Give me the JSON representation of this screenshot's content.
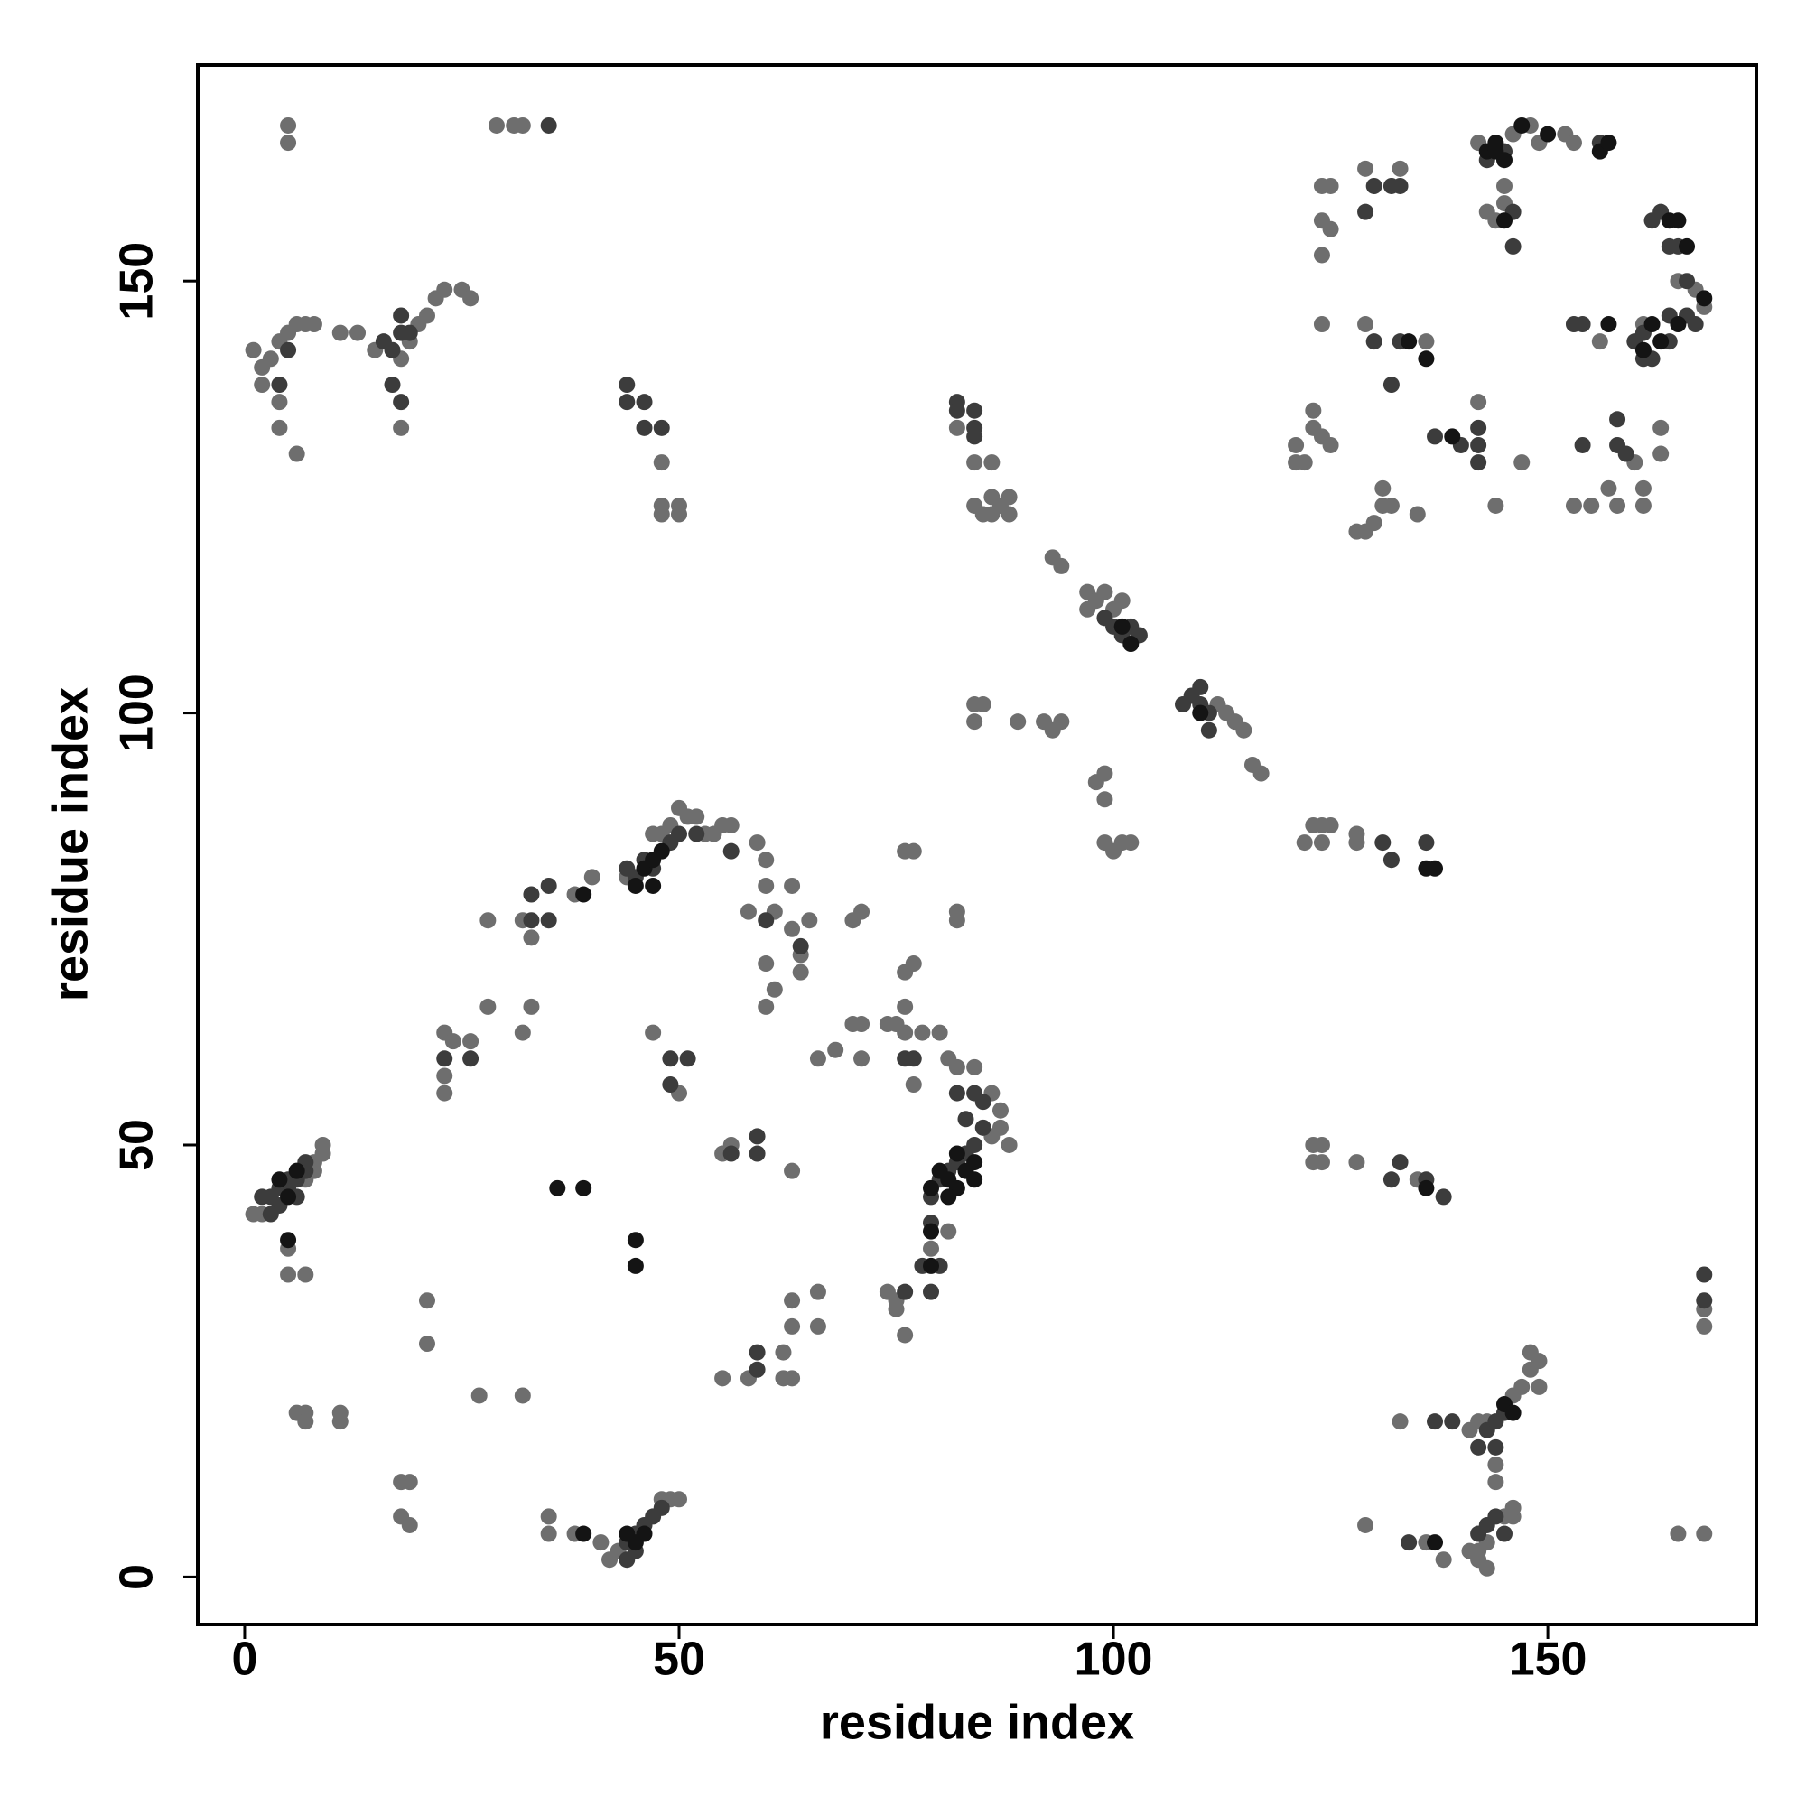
{
  "chart_data": {
    "type": "scatter",
    "x_label": "residue index",
    "y_label": "residue index",
    "xlim": [
      -5.4,
      174
    ],
    "ylim": [
      -5.5,
      175
    ],
    "xticks": [
      0,
      50,
      100,
      150
    ],
    "yticks": [
      0,
      50,
      100,
      150
    ],
    "grid": false,
    "series": [
      {
        "color": "#6e6e6e",
        "x": [
          5,
          5,
          29,
          31,
          32,
          1,
          2,
          3,
          4,
          5,
          6,
          7,
          8,
          2,
          4,
          6,
          4,
          11,
          13,
          15,
          18,
          19,
          20,
          21,
          22,
          23,
          25,
          26,
          18,
          48,
          48,
          48,
          50,
          50,
          82,
          84,
          86,
          84,
          85,
          86,
          87,
          86,
          88,
          88,
          93,
          94,
          97,
          98,
          99,
          100,
          101,
          97,
          112,
          113,
          114,
          115,
          116,
          117,
          84,
          84,
          85,
          89,
          92,
          93,
          94,
          98,
          99,
          99,
          99,
          100,
          101,
          102,
          123,
          124,
          125,
          122,
          124,
          128,
          128,
          124,
          125,
          124,
          125,
          124,
          124,
          129,
          133,
          129,
          136,
          121,
          122,
          121,
          123,
          124,
          123,
          125,
          128,
          129,
          130,
          131,
          132,
          131,
          135,
          142,
          145,
          145,
          144,
          143,
          146,
          148,
          149,
          152,
          153,
          153,
          155,
          157,
          158,
          161,
          161,
          160,
          163,
          163,
          165,
          167,
          168,
          144,
          147,
          156,
          161,
          142,
          1,
          2,
          7,
          8,
          9,
          9,
          8,
          5,
          5,
          7,
          6,
          7,
          7,
          11,
          11,
          18,
          19,
          18,
          19,
          21,
          21,
          27,
          32,
          35,
          35,
          38,
          41,
          42,
          43,
          48,
          49,
          50,
          23,
          24,
          23,
          23,
          26,
          28,
          32,
          33,
          32,
          28,
          33,
          38,
          40,
          44,
          47,
          48,
          49,
          50,
          51,
          52,
          53,
          54,
          55,
          56,
          59,
          60,
          60,
          61,
          63,
          63,
          65,
          58,
          60,
          61,
          60,
          64,
          64,
          47,
          50,
          55,
          56,
          63,
          55,
          58,
          62,
          63,
          62,
          63,
          63,
          66,
          66,
          66,
          68,
          70,
          71,
          71,
          70,
          71,
          76,
          77,
          76,
          77,
          74,
          75,
          76,
          76,
          77,
          78,
          80,
          81,
          82,
          84,
          86,
          87,
          88,
          87,
          86,
          82,
          82,
          74,
          75,
          76,
          75,
          79,
          81,
          123,
          124,
          123,
          124,
          128,
          135,
          129,
          133,
          141,
          143,
          146,
          147,
          148,
          148,
          149,
          149,
          142,
          142,
          143,
          143,
          145,
          146,
          146,
          144,
          144,
          136,
          138,
          142,
          141,
          165,
          168,
          168,
          168
        ],
        "values": [
          168,
          166,
          168,
          168,
          168,
          142,
          140,
          141,
          143,
          144,
          145,
          145,
          145,
          138,
          133,
          130,
          136,
          144,
          144,
          142,
          141,
          143,
          145,
          146,
          148,
          149,
          149,
          148,
          133,
          129,
          124,
          123,
          124,
          123,
          133,
          129,
          129,
          124,
          123,
          125,
          124,
          123,
          125,
          123,
          118,
          117,
          114,
          113,
          114,
          112,
          113,
          112,
          101,
          100,
          99,
          98,
          94,
          93,
          101,
          99,
          101,
          99,
          99,
          98,
          99,
          92,
          93,
          90,
          85,
          84,
          85,
          85,
          87,
          87,
          87,
          85,
          85,
          85,
          86,
          161,
          161,
          157,
          156,
          153,
          145,
          163,
          163,
          145,
          143,
          129,
          129,
          131,
          133,
          132,
          135,
          131,
          121,
          121,
          122,
          124,
          124,
          126,
          123,
          166,
          161,
          159,
          157,
          158,
          167,
          168,
          166,
          167,
          166,
          124,
          124,
          126,
          124,
          126,
          124,
          129,
          130,
          133,
          150,
          149,
          147,
          124,
          129,
          143,
          145,
          136,
          42,
          42,
          46,
          48,
          49,
          50,
          47,
          38,
          35,
          35,
          19,
          19,
          18,
          19,
          18,
          11,
          11,
          7,
          6,
          32,
          27,
          21,
          21,
          5,
          7,
          5,
          4,
          2,
          3,
          9,
          9,
          9,
          63,
          62,
          58,
          56,
          62,
          66,
          63,
          66,
          76,
          76,
          74,
          79,
          81,
          81,
          86,
          86,
          87,
          89,
          88,
          88,
          86,
          86,
          87,
          87,
          85,
          83,
          80,
          77,
          80,
          75,
          76,
          77,
          71,
          68,
          66,
          72,
          70,
          63,
          56,
          49,
          50,
          47,
          23,
          23,
          23,
          23,
          26,
          29,
          32,
          29,
          33,
          60,
          61,
          64,
          64,
          60,
          76,
          77,
          84,
          84,
          70,
          71,
          64,
          64,
          66,
          63,
          57,
          63,
          63,
          60,
          59,
          59,
          56,
          54,
          50,
          52,
          51,
          77,
          76,
          33,
          32,
          28,
          31,
          38,
          40,
          50,
          50,
          48,
          48,
          48,
          46,
          6,
          18,
          17,
          18,
          21,
          22,
          24,
          26,
          25,
          22,
          3,
          2,
          1,
          4,
          7,
          7,
          8,
          13,
          11,
          4,
          2,
          18,
          3,
          5,
          5,
          29,
          31
        ]
      },
      {
        "color": "#3c3c3c",
        "x": [
          35,
          4,
          16,
          17,
          18,
          19,
          17,
          18,
          5,
          18,
          44,
          44,
          46,
          46,
          48,
          82,
          82,
          84,
          84,
          84,
          99,
          100,
          101,
          102,
          103,
          109,
          110,
          111,
          110,
          108,
          111,
          131,
          132,
          136,
          130,
          132,
          129,
          133,
          130,
          133,
          132,
          143,
          145,
          146,
          146,
          140,
          142,
          142,
          142,
          153,
          154,
          156,
          158,
          159,
          160,
          161,
          161,
          162,
          164,
          164,
          166,
          167,
          162,
          163,
          164,
          165,
          166,
          154,
          158,
          137,
          2,
          3,
          4,
          5,
          6,
          7,
          4,
          5,
          6,
          7,
          3,
          44,
          45,
          46,
          47,
          45,
          44,
          48,
          23,
          26,
          33,
          33,
          35,
          35,
          44,
          45,
          46,
          47,
          49,
          50,
          52,
          56,
          60,
          64,
          49,
          51,
          49,
          56,
          59,
          59,
          59,
          59,
          76,
          77,
          82,
          84,
          83,
          85,
          84,
          83,
          82,
          81,
          80,
          79,
          79,
          78,
          79,
          76,
          80,
          85,
          132,
          133,
          136,
          138,
          134,
          137,
          139,
          142,
          143,
          144,
          145,
          144,
          142,
          143,
          144,
          145,
          168,
          168
        ],
        "values": [
          168,
          138,
          143,
          142,
          144,
          144,
          138,
          136,
          142,
          146,
          138,
          136,
          136,
          133,
          133,
          136,
          135,
          135,
          133,
          132,
          111,
          110,
          109,
          110,
          109,
          102,
          101,
          100,
          103,
          101,
          98,
          85,
          83,
          85,
          161,
          161,
          158,
          161,
          143,
          143,
          138,
          164,
          165,
          158,
          154,
          131,
          133,
          131,
          129,
          145,
          145,
          166,
          131,
          130,
          143,
          144,
          141,
          141,
          143,
          146,
          146,
          145,
          157,
          158,
          154,
          154,
          150,
          131,
          134,
          132,
          44,
          44,
          45,
          45,
          46,
          47,
          43,
          46,
          44,
          48,
          42,
          4,
          5,
          6,
          7,
          3,
          2,
          8,
          60,
          60,
          76,
          79,
          80,
          76,
          82,
          81,
          83,
          82,
          85,
          86,
          86,
          84,
          76,
          73,
          60,
          60,
          57,
          49,
          51,
          49,
          24,
          26,
          60,
          60,
          56,
          56,
          53,
          52,
          50,
          49,
          48,
          47,
          46,
          44,
          41,
          36,
          33,
          33,
          36,
          55,
          46,
          48,
          46,
          44,
          4,
          18,
          18,
          15,
          17,
          18,
          19,
          15,
          5,
          6,
          7,
          5,
          35,
          32
        ]
      },
      {
        "color": "#141414",
        "x": [
          101,
          102,
          110,
          136,
          137,
          143,
          144,
          144,
          145,
          145,
          147,
          150,
          156,
          157,
          164,
          165,
          166,
          161,
          162,
          163,
          165,
          136,
          134,
          157,
          139,
          168,
          39,
          45,
          46,
          47,
          48,
          47,
          36,
          39,
          45,
          45,
          79,
          80,
          81,
          82,
          83,
          84,
          79,
          79,
          81,
          82,
          84,
          4,
          5,
          6,
          5,
          39,
          45,
          46,
          44,
          137,
          136,
          145,
          146
        ],
        "values": [
          110,
          108,
          100,
          82,
          82,
          165,
          166,
          165,
          164,
          157,
          168,
          167,
          165,
          166,
          157,
          157,
          154,
          142,
          145,
          143,
          145,
          141,
          143,
          145,
          132,
          148,
          79,
          80,
          82,
          80,
          84,
          83,
          45,
          45,
          39,
          36,
          45,
          47,
          46,
          45,
          47,
          46,
          40,
          36,
          44,
          49,
          48,
          46,
          44,
          47,
          39,
          5,
          4,
          5,
          5,
          4,
          45,
          20,
          19
        ]
      }
    ]
  }
}
